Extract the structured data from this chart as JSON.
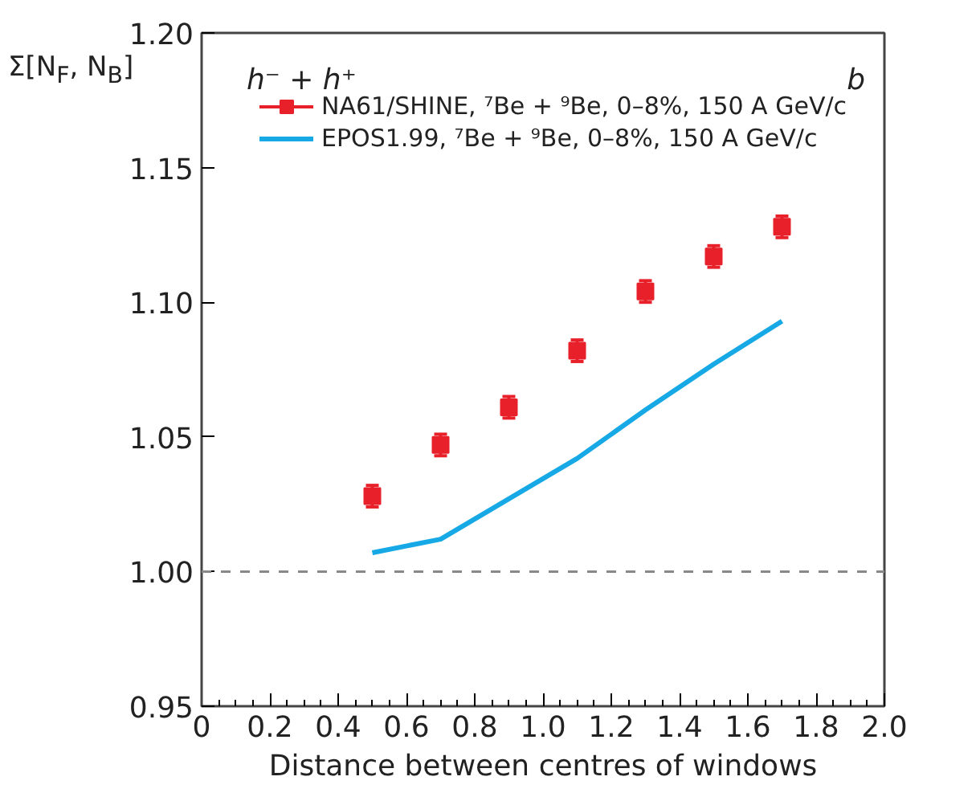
{
  "chart_data": {
    "type": "scatter",
    "xlabel": "Distance between centres of windows",
    "ylabel": "Σ[N$_{F}$, N$_{B}$]",
    "annotations": [
      "h⁻ + h⁺",
      "b"
    ],
    "series": [
      {
        "name": "NA61/SHINE, ⁷Be + ⁹Be, 0–8%, 150 A GeV/c",
        "color": "#e8202a",
        "marker": "square",
        "x": [
          0.5,
          0.7,
          0.9,
          1.1,
          1.3,
          1.5,
          1.7
        ],
        "values": [
          1.028,
          1.047,
          1.061,
          1.082,
          1.104,
          1.117,
          1.128
        ],
        "errors": [
          0.004,
          0.004,
          0.004,
          0.004,
          0.004,
          0.004,
          0.004
        ]
      },
      {
        "name": "EPOS1.99, ⁷Be + ⁹Be, 0–8%, 150 A GeV/c",
        "type": "line",
        "color": "#16a9e6",
        "line_style": "solid",
        "x": [
          0.5,
          0.7,
          0.9,
          1.1,
          1.3,
          1.5,
          1.7
        ],
        "values": [
          1.007,
          1.012,
          1.027,
          1.042,
          1.06,
          1.077,
          1.093
        ]
      }
    ],
    "xlim": [
      0,
      2.0
    ],
    "xticks": [
      0,
      {
        "value": 0.2,
        "label": "0.2"
      },
      {
        "value": 0.4,
        "label": "0.4"
      },
      {
        "value": 0.6,
        "label": "0.6"
      },
      {
        "value": 0.8,
        "label": "0.8"
      },
      {
        "value": 1.0,
        "label": "1.0"
      },
      {
        "value": 1.2,
        "label": "1.2"
      },
      {
        "value": 1.4,
        "label": "1.4"
      },
      {
        "value": 1.6,
        "label": "1.6"
      },
      {
        "value": 1.8,
        "label": "1.8"
      },
      {
        "value": 2.0,
        "label": "2.0"
      }
    ],
    "ylim": [
      0.95,
      1.2
    ],
    "yticks": [
      0.95,
      {
        "value": 1.0,
        "label": "1.00"
      },
      1.05,
      {
        "value": 1.1,
        "label": "1.10"
      },
      1.15,
      {
        "value": 1.2,
        "label": "1.20"
      }
    ],
    "ref_lines": [
      {
        "axis": "y",
        "value": 1.0,
        "color": "#888888",
        "line_style": "dashed"
      }
    ],
    "grid": false,
    "legend": "top left"
  }
}
